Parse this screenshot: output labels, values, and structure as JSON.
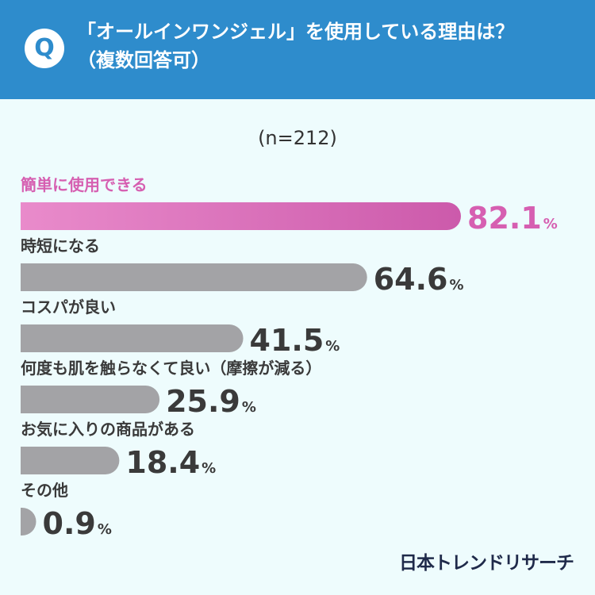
{
  "header": {
    "badge": "Q",
    "question_line1": "「オールインワンジェル」を使用している理由は？",
    "question_line2": "（複数回答可）"
  },
  "chart_data": {
    "type": "bar",
    "sample_label": "(n=212)",
    "categories": [
      "簡単に使用できる",
      "時短になる",
      "コスパが良い",
      "何度も肌を触らなくて良い（摩擦が減る）",
      "お気に入りの商品がある",
      "その他"
    ],
    "values": [
      82.1,
      64.6,
      41.5,
      25.9,
      18.4,
      0.9
    ],
    "value_labels": [
      "82.1",
      "64.6",
      "41.5",
      "25.9",
      "18.4",
      "0.9"
    ],
    "unit": "%",
    "highlight_index": 0,
    "colors": {
      "highlight_start": "#e98bcb",
      "highlight_end": "#cc5aab",
      "default": "#a3a3a6",
      "highlight_text": "#d65fb1",
      "default_text": "#3a3a3a"
    }
  },
  "brand": "日本トレンドリサーチ"
}
